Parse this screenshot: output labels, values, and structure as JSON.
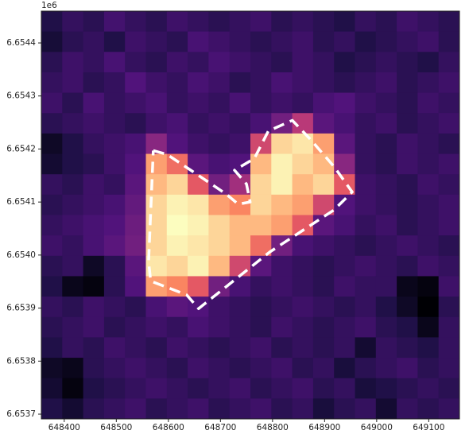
{
  "chart_data": {
    "type": "raster",
    "colormap": "magma",
    "offset_text": "1e6",
    "xlim": [
      648356,
      649159
    ],
    "ylim": [
      6653691,
      6654460
    ],
    "xticks": [
      648400,
      648500,
      648600,
      648700,
      648800,
      648900,
      649000,
      649100
    ],
    "yticks": [
      {
        "value": 6653700,
        "label": "6.6537"
      },
      {
        "value": 6653800,
        "label": "6.6538"
      },
      {
        "value": 6653900,
        "label": "6.6539"
      },
      {
        "value": 6654000,
        "label": "6.6540"
      },
      {
        "value": 6654100,
        "label": "6.6541"
      },
      {
        "value": 6654200,
        "label": "6.6542"
      },
      {
        "value": 6654300,
        "label": "6.6543"
      },
      {
        "value": 6654400,
        "label": "6.6544"
      }
    ],
    "z": [
      [
        18,
        22,
        20,
        25,
        22,
        20,
        24,
        22,
        20,
        22,
        24,
        20,
        22,
        20,
        18,
        22,
        20,
        24,
        22,
        20
      ],
      [
        15,
        20,
        22,
        18,
        24,
        22,
        20,
        26,
        24,
        22,
        20,
        22,
        24,
        20,
        22,
        18,
        20,
        22,
        24,
        20
      ],
      [
        20,
        24,
        22,
        26,
        22,
        20,
        24,
        22,
        26,
        24,
        22,
        20,
        24,
        22,
        18,
        20,
        22,
        20,
        18,
        22
      ],
      [
        22,
        24,
        20,
        22,
        28,
        24,
        22,
        26,
        24,
        20,
        22,
        26,
        24,
        22,
        20,
        22,
        24,
        20,
        22,
        24
      ],
      [
        24,
        20,
        26,
        22,
        24,
        26,
        22,
        24,
        22,
        26,
        22,
        24,
        22,
        26,
        28,
        24,
        22,
        20,
        24,
        22
      ],
      [
        20,
        22,
        24,
        22,
        20,
        24,
        26,
        22,
        24,
        22,
        26,
        35,
        50,
        30,
        26,
        22,
        24,
        20,
        22,
        24
      ],
      [
        12,
        18,
        22,
        24,
        26,
        40,
        28,
        24,
        22,
        24,
        55,
        85,
        88,
        75,
        30,
        22,
        20,
        24,
        22,
        20
      ],
      [
        14,
        18,
        20,
        24,
        28,
        75,
        65,
        30,
        26,
        28,
        80,
        90,
        85,
        80,
        40,
        22,
        20,
        24,
        22,
        24
      ],
      [
        22,
        20,
        24,
        22,
        30,
        80,
        85,
        60,
        35,
        45,
        85,
        90,
        80,
        85,
        60,
        24,
        22,
        20,
        24,
        22
      ],
      [
        20,
        22,
        24,
        26,
        32,
        85,
        90,
        88,
        75,
        70,
        85,
        80,
        75,
        55,
        28,
        24,
        22,
        20,
        22,
        24
      ],
      [
        22,
        24,
        26,
        28,
        34,
        85,
        92,
        90,
        85,
        80,
        80,
        75,
        60,
        30,
        26,
        22,
        24,
        20,
        22,
        24
      ],
      [
        24,
        22,
        26,
        30,
        35,
        85,
        90,
        88,
        85,
        80,
        65,
        35,
        26,
        24,
        22,
        20,
        22,
        24,
        22,
        20
      ],
      [
        20,
        22,
        12,
        20,
        30,
        88,
        85,
        90,
        80,
        55,
        30,
        24,
        22,
        20,
        22,
        24,
        22,
        20,
        24,
        22
      ],
      [
        18,
        10,
        8,
        20,
        28,
        75,
        70,
        60,
        35,
        26,
        22,
        24,
        22,
        20,
        24,
        22,
        22,
        10,
        8,
        24
      ],
      [
        22,
        20,
        24,
        22,
        20,
        26,
        30,
        28,
        24,
        22,
        20,
        22,
        24,
        22,
        20,
        22,
        18,
        12,
        6,
        20
      ],
      [
        20,
        22,
        24,
        20,
        22,
        24,
        22,
        26,
        24,
        22,
        20,
        24,
        22,
        20,
        22,
        24,
        20,
        18,
        10,
        22
      ],
      [
        18,
        22,
        20,
        24,
        22,
        20,
        24,
        22,
        20,
        22,
        24,
        20,
        22,
        20,
        22,
        14,
        22,
        20,
        18,
        22
      ],
      [
        12,
        10,
        20,
        22,
        24,
        22,
        20,
        24,
        22,
        20,
        22,
        24,
        20,
        22,
        16,
        20,
        22,
        24,
        20,
        22
      ],
      [
        14,
        8,
        18,
        20,
        22,
        24,
        22,
        20,
        22,
        24,
        20,
        22,
        24,
        20,
        22,
        16,
        18,
        20,
        22,
        20
      ],
      [
        18,
        14,
        20,
        22,
        24,
        20,
        22,
        24,
        20,
        22,
        24,
        20,
        22,
        16,
        20,
        22,
        14,
        22,
        20,
        22
      ]
    ],
    "outline": {
      "color": "#ffffff",
      "x": [
        648571,
        648597,
        648643,
        648711,
        648734,
        648757,
        648750,
        648727,
        648765,
        648792,
        648838,
        648872,
        648918,
        648953,
        648918,
        648795,
        648658,
        648635,
        648566,
        648562,
        648571
      ],
      "y": [
        6654197,
        6654190,
        6654160,
        6654115,
        6654096,
        6654100,
        6654134,
        6654160,
        6654182,
        6654234,
        6654254,
        6654219,
        6654167,
        6654119,
        6654085,
        6654006,
        6653899,
        6653925,
        6653951,
        6653988,
        6654197
      ]
    }
  }
}
